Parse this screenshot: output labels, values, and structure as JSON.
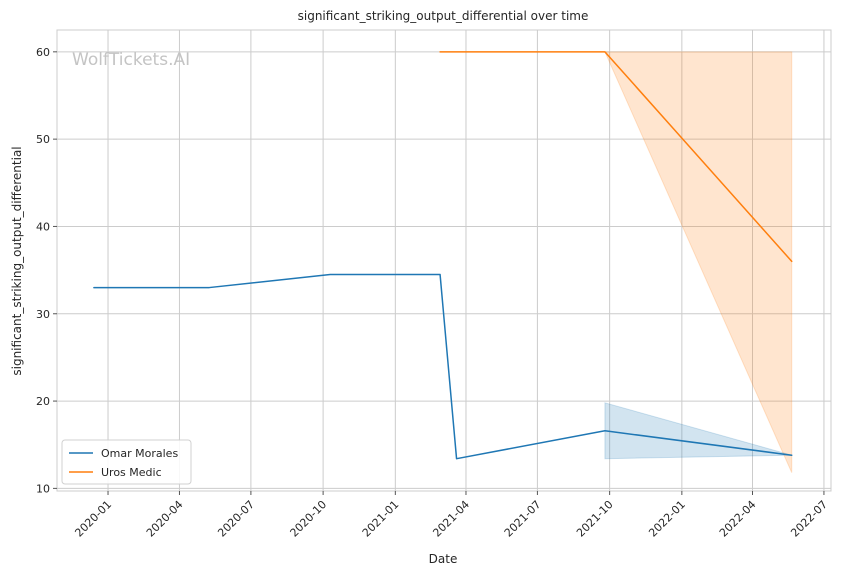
{
  "chart_data": {
    "type": "line",
    "title": "significant_striking_output_differential over time",
    "xlabel": "Date",
    "ylabel": "significant_striking_output_differential",
    "watermark": "WolfTickets.AI",
    "x_ticks": [
      "2020-01",
      "2020-04",
      "2020-07",
      "2020-10",
      "2021-01",
      "2021-04",
      "2021-07",
      "2021-10",
      "2022-01",
      "2022-04",
      "2022-07"
    ],
    "y_ticks": [
      10,
      20,
      30,
      40,
      50,
      60
    ],
    "xlim": [
      "2019-10-28",
      "2022-07-10"
    ],
    "ylim": [
      9.7,
      62.5
    ],
    "grid": true,
    "legend_position": "lower-left",
    "series": [
      {
        "name": "Omar Morales",
        "color": "#1f77b4",
        "points": [
          {
            "x": "2019-12-14",
            "y": 33.0
          },
          {
            "x": "2020-05-09",
            "y": 33.0
          },
          {
            "x": "2020-10-10",
            "y": 34.5
          },
          {
            "x": "2021-02-27",
            "y": 34.5
          },
          {
            "x": "2021-03-20",
            "y": 13.4
          },
          {
            "x": "2021-09-25",
            "y": 16.6
          },
          {
            "x": "2022-05-21",
            "y": 13.8
          }
        ],
        "band": [
          {
            "x": "2021-09-25",
            "low": 13.4,
            "high": 19.8
          },
          {
            "x": "2022-05-21",
            "low": 13.8,
            "high": 13.8
          }
        ]
      },
      {
        "name": "Uros Medic",
        "color": "#ff7f0e",
        "points": [
          {
            "x": "2021-02-27",
            "y": 60.0
          },
          {
            "x": "2021-09-25",
            "y": 60.0
          },
          {
            "x": "2022-05-21",
            "y": 36.0
          }
        ],
        "band": [
          {
            "x": "2021-09-25",
            "low": 60.0,
            "high": 60.0
          },
          {
            "x": "2022-05-21",
            "low": 11.8,
            "high": 60.0
          }
        ]
      }
    ]
  }
}
